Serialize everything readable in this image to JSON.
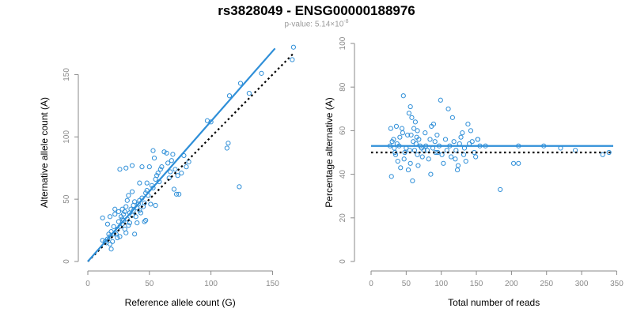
{
  "title": "rs3828049 - ENSG00000188976",
  "subtitle": "p-value: 5.14×10",
  "subtitle_exponent": "-8",
  "colors": {
    "points": "#2f8fd8",
    "fit_line": "#2f8fd8",
    "reference_line": "#000000",
    "axis": "#8a8a8a"
  },
  "chart_data": [
    {
      "type": "scatter",
      "xlabel": "Reference allele count (G)",
      "ylabel": "Alternative allele count (A)",
      "xlim": [
        0,
        160
      ],
      "ylim": [
        0,
        175
      ],
      "xticks": [
        0,
        50,
        100,
        150
      ],
      "yticks": [
        0,
        50,
        100,
        150
      ],
      "grid": false,
      "points": [
        [
          12,
          17
        ],
        [
          14,
          16
        ],
        [
          15,
          15
        ],
        [
          16,
          18
        ],
        [
          17,
          22
        ],
        [
          18,
          14
        ],
        [
          18,
          20
        ],
        [
          19,
          10
        ],
        [
          19,
          24
        ],
        [
          20,
          16
        ],
        [
          21,
          22
        ],
        [
          21,
          28
        ],
        [
          22,
          38
        ],
        [
          23,
          22
        ],
        [
          24,
          19
        ],
        [
          24,
          26
        ],
        [
          25,
          40
        ],
        [
          25,
          32
        ],
        [
          26,
          28
        ],
        [
          26,
          20
        ],
        [
          27,
          36
        ],
        [
          28,
          30
        ],
        [
          28,
          42
        ],
        [
          29,
          38
        ],
        [
          29,
          33
        ],
        [
          30,
          26
        ],
        [
          30,
          40
        ],
        [
          31,
          23
        ],
        [
          31,
          44
        ],
        [
          32,
          34
        ],
        [
          32,
          49
        ],
        [
          33,
          29
        ],
        [
          33,
          53
        ],
        [
          34,
          39
        ],
        [
          34,
          31
        ],
        [
          35,
          42
        ],
        [
          36,
          37
        ],
        [
          37,
          45
        ],
        [
          37,
          41
        ],
        [
          38,
          22
        ],
        [
          38,
          48
        ],
        [
          39,
          36
        ],
        [
          40,
          43
        ],
        [
          40,
          31
        ],
        [
          41,
          46
        ],
        [
          42,
          49
        ],
        [
          42,
          41
        ],
        [
          43,
          39
        ],
        [
          44,
          51
        ],
        [
          44,
          76
        ],
        [
          45,
          44
        ],
        [
          46,
          47
        ],
        [
          47,
          33
        ],
        [
          47,
          55
        ],
        [
          48,
          57
        ],
        [
          48,
          63
        ],
        [
          49,
          53
        ],
        [
          50,
          76
        ],
        [
          51,
          46
        ],
        [
          52,
          61
        ],
        [
          53,
          59
        ],
        [
          53,
          89
        ],
        [
          54,
          83
        ],
        [
          55,
          66
        ],
        [
          55,
          45
        ],
        [
          56,
          69
        ],
        [
          57,
          71
        ],
        [
          58,
          64
        ],
        [
          59,
          74
        ],
        [
          60,
          76
        ],
        [
          62,
          88
        ],
        [
          64,
          87
        ],
        [
          65,
          79
        ],
        [
          66,
          67
        ],
        [
          67,
          72
        ],
        [
          68,
          81
        ],
        [
          69,
          86
        ],
        [
          70,
          58
        ],
        [
          71,
          74
        ],
        [
          72,
          54
        ],
        [
          73,
          69
        ],
        [
          74,
          54
        ],
        [
          76,
          71
        ],
        [
          78,
          85
        ],
        [
          80,
          76
        ],
        [
          82,
          80
        ],
        [
          42,
          63
        ],
        [
          36,
          56
        ],
        [
          26,
          74
        ],
        [
          31,
          75
        ],
        [
          16,
          30
        ],
        [
          18,
          36
        ],
        [
          22,
          42
        ],
        [
          12,
          35
        ],
        [
          97,
          113
        ],
        [
          100,
          112
        ],
        [
          113,
          91
        ],
        [
          114,
          95
        ],
        [
          115,
          133
        ],
        [
          123,
          60
        ],
        [
          124,
          143
        ],
        [
          131,
          135
        ],
        [
          141,
          151
        ],
        [
          166,
          162
        ],
        [
          167,
          172
        ],
        [
          36,
          77
        ],
        [
          28,
          34
        ],
        [
          46,
          32
        ]
      ],
      "fit_line": {
        "from": [
          0,
          0
        ],
        "to": [
          152,
          171
        ]
      },
      "reference_line": {
        "from": [
          0,
          0
        ],
        "to": [
          167,
          167
        ]
      }
    },
    {
      "type": "scatter",
      "xlabel": "Total number of reads",
      "ylabel": "Percentage alternative (A)",
      "xlim": [
        0,
        345
      ],
      "ylim": [
        0,
        100
      ],
      "xticks": [
        0,
        50,
        100,
        150,
        200,
        250,
        300,
        350
      ],
      "yticks": [
        0,
        20,
        40,
        60,
        80,
        100
      ],
      "grid": false,
      "points": [
        [
          27,
          53
        ],
        [
          28,
          61
        ],
        [
          29,
          39
        ],
        [
          30,
          55
        ],
        [
          32,
          56
        ],
        [
          33,
          52
        ],
        [
          34,
          50
        ],
        [
          35,
          49
        ],
        [
          36,
          62
        ],
        [
          37,
          54
        ],
        [
          38,
          46
        ],
        [
          40,
          53
        ],
        [
          41,
          57
        ],
        [
          42,
          43
        ],
        [
          44,
          61
        ],
        [
          45,
          59
        ],
        [
          46,
          76
        ],
        [
          47,
          47
        ],
        [
          48,
          50
        ],
        [
          50,
          52
        ],
        [
          52,
          58
        ],
        [
          53,
          42
        ],
        [
          54,
          68
        ],
        [
          55,
          51
        ],
        [
          56,
          45
        ],
        [
          56,
          71
        ],
        [
          57,
          58
        ],
        [
          58,
          66
        ],
        [
          59,
          37
        ],
        [
          60,
          55
        ],
        [
          61,
          61
        ],
        [
          62,
          51
        ],
        [
          63,
          64
        ],
        [
          64,
          54
        ],
        [
          65,
          57
        ],
        [
          66,
          49
        ],
        [
          66,
          60
        ],
        [
          67,
          44
        ],
        [
          68,
          56
        ],
        [
          70,
          53
        ],
        [
          72,
          52
        ],
        [
          73,
          48
        ],
        [
          75,
          51
        ],
        [
          77,
          59
        ],
        [
          78,
          53
        ],
        [
          80,
          51
        ],
        [
          82,
          47
        ],
        [
          84,
          56
        ],
        [
          85,
          40
        ],
        [
          86,
          62
        ],
        [
          88,
          52
        ],
        [
          89,
          63
        ],
        [
          91,
          55
        ],
        [
          92,
          50
        ],
        [
          94,
          58
        ],
        [
          95,
          50
        ],
        [
          97,
          53
        ],
        [
          99,
          74
        ],
        [
          101,
          49
        ],
        [
          103,
          45
        ],
        [
          106,
          56
        ],
        [
          108,
          51
        ],
        [
          110,
          70
        ],
        [
          112,
          53
        ],
        [
          114,
          48
        ],
        [
          116,
          66
        ],
        [
          118,
          55
        ],
        [
          120,
          47
        ],
        [
          121,
          51
        ],
        [
          123,
          42
        ],
        [
          124,
          44
        ],
        [
          126,
          54
        ],
        [
          128,
          57
        ],
        [
          130,
          59
        ],
        [
          132,
          49
        ],
        [
          133,
          52
        ],
        [
          135,
          46
        ],
        [
          138,
          63
        ],
        [
          140,
          54
        ],
        [
          142,
          60
        ],
        [
          144,
          55
        ],
        [
          147,
          50
        ],
        [
          149,
          48
        ],
        [
          152,
          56
        ],
        [
          155,
          53
        ],
        [
          163,
          53
        ],
        [
          184,
          33
        ],
        [
          203,
          45
        ],
        [
          210,
          45
        ],
        [
          210,
          53
        ],
        [
          246,
          53
        ],
        [
          270,
          52
        ],
        [
          291,
          51
        ],
        [
          330,
          49
        ],
        [
          339,
          50
        ],
        [
          152,
          56
        ]
      ],
      "fit_line": {
        "y": 53
      },
      "reference_line": {
        "y": 50
      }
    }
  ]
}
